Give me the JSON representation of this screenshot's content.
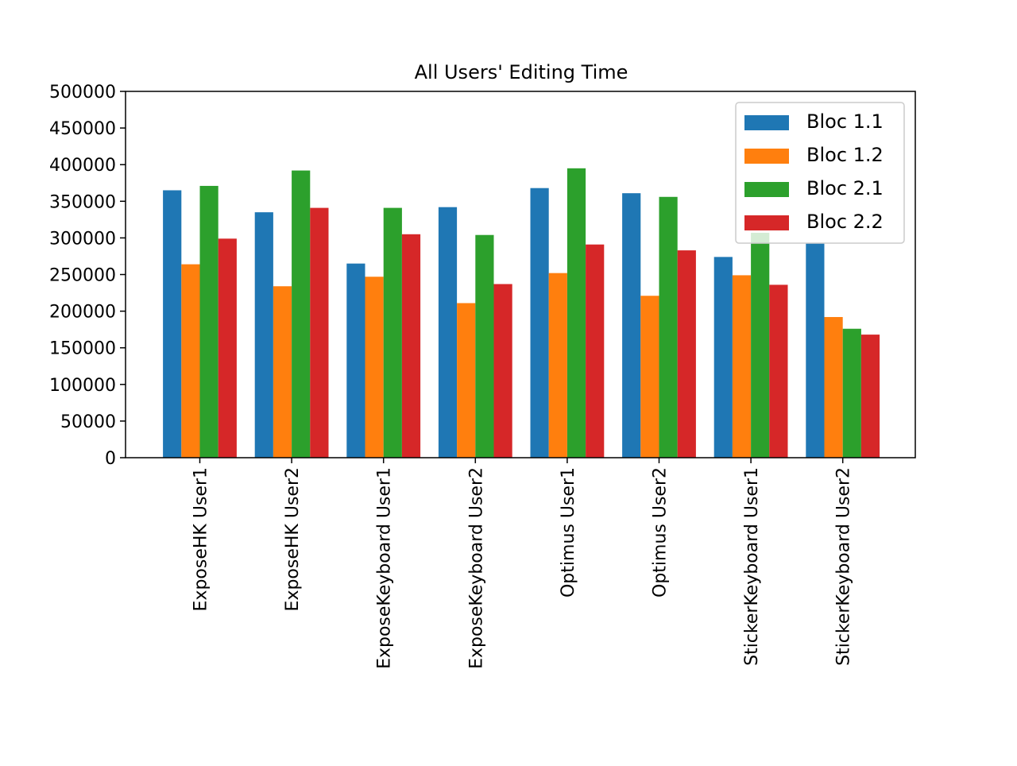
{
  "chart_data": {
    "type": "bar",
    "title": "All Users' Editing Time",
    "xlabel": "",
    "ylabel": "",
    "ylim": [
      0,
      500000
    ],
    "yticks": [
      0,
      50000,
      100000,
      150000,
      200000,
      250000,
      300000,
      350000,
      400000,
      450000,
      500000
    ],
    "grid": false,
    "legend_position": "top-right",
    "categories": [
      "ExposeHK User1",
      "ExposeHK User2",
      "ExposeKeyboard User1",
      "ExposeKeyboard User2",
      "Optimus User1",
      "Optimus User2",
      "StickerKeyboard User1",
      "StickerKeyboard User2"
    ],
    "series": [
      {
        "name": "Bloc 1.1",
        "color": "#1f77b4",
        "values": [
          365000,
          335000,
          265000,
          342000,
          368000,
          361000,
          274000,
          293000
        ]
      },
      {
        "name": "Bloc 1.2",
        "color": "#ff7f0e",
        "values": [
          264000,
          234000,
          247000,
          211000,
          252000,
          221000,
          249000,
          192000
        ]
      },
      {
        "name": "Bloc 2.1",
        "color": "#2ca02c",
        "values": [
          371000,
          392000,
          341000,
          304000,
          395000,
          356000,
          307000,
          176000
        ]
      },
      {
        "name": "Bloc 2.2",
        "color": "#d62728",
        "values": [
          299000,
          341000,
          305000,
          237000,
          291000,
          283000,
          236000,
          168000
        ]
      }
    ]
  }
}
